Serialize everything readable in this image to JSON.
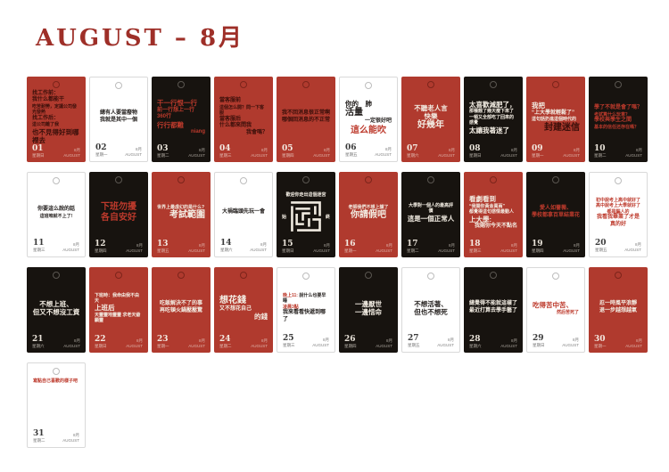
{
  "title": "AUGUST – 8月",
  "footer_right": [
    "8月",
    "AUGUST"
  ],
  "colors": {
    "accent_red": "#b03a2e",
    "card_black": "#17130f",
    "title_red": "#9e2f28",
    "dark_text_on_red": "#390f0a",
    "warm_white_text": "#f3ede3"
  },
  "cards": [
    {
      "num": "01",
      "weekday": "星期日",
      "bg": "red",
      "align": "l",
      "lines": [
        {
          "t": "找工作前：",
          "s": "m",
          "c": "dark"
        },
        {
          "t": "我什么都能干",
          "s": "m",
          "c": "dark"
        },
        {
          "t": "吃苦耐勞，定讓公司發光發熱",
          "s": "s",
          "c": "dark"
        },
        {
          "t": "找工作后：",
          "s": "m",
          "c": "dark"
        },
        {
          "t": "這公司離了我",
          "s": "s",
          "c": "dark"
        },
        {
          "t": "也不見得好到哪裡去",
          "s": "l",
          "c": "dark"
        }
      ]
    },
    {
      "num": "02",
      "weekday": "星期一",
      "bg": "white",
      "align": "c",
      "lines": [
        {
          "t": "總有人要當廢物",
          "s": "m",
          "c": "black"
        },
        {
          "t": "我就是其中一個",
          "s": "m",
          "c": "black"
        }
      ]
    },
    {
      "num": "03",
      "weekday": "星期二",
      "bg": "black",
      "align": "l",
      "lines": [
        {
          "t": "干一行恨一行",
          "s": "l",
          "c": "red"
        },
        {
          "t": "前一行想上一行",
          "s": "m",
          "c": "red"
        },
        {
          "t": "360行",
          "s": "m",
          "c": "red"
        },
        {
          "t": "行行都難",
          "s": "l",
          "c": "red"
        },
        {
          "t": "niang",
          "s": "m",
          "c": "red",
          "a": "r"
        }
      ]
    },
    {
      "num": "04",
      "weekday": "星期三",
      "bg": "red",
      "align": "l",
      "lines": [
        {
          "t": "當客服前",
          "s": "m",
          "c": "dark"
        },
        {
          "t": "這個怎么開？問一下客服",
          "s": "s",
          "c": "dark"
        },
        {
          "t": "當客服后",
          "s": "m",
          "c": "dark"
        },
        {
          "t": "什么都來問我",
          "s": "m",
          "c": "dark"
        },
        {
          "t": "我會嗎？",
          "s": "m",
          "c": "dark",
          "a": "r"
        }
      ]
    },
    {
      "num": "05",
      "weekday": "星期四",
      "bg": "red",
      "align": "l",
      "lines": [
        {
          "t": "我不回消息很正常啊",
          "s": "m",
          "c": "dark"
        },
        {
          "t": "哪個回消息的不正常",
          "s": "m",
          "c": "dark"
        }
      ]
    },
    {
      "num": "06",
      "weekday": "星期五",
      "bg": "white",
      "align": "l",
      "lines": [
        {
          "t": "你的　肺",
          "s": "l",
          "c": "black"
        },
        {
          "t": "活量",
          "s": "xl",
          "c": "black"
        },
        {
          "t": "一定很好吧",
          "s": "m",
          "c": "black",
          "a": "r"
        },
        {
          "t": "這么能吹",
          "s": "xl",
          "c": "red",
          "a": "c"
        }
      ]
    },
    {
      "num": "07",
      "weekday": "星期六",
      "bg": "red",
      "align": "c",
      "lines": [
        {
          "t": "不聽老人言",
          "s": "l",
          "c": "white"
        },
        {
          "t": "快樂",
          "s": "l",
          "c": "white"
        },
        {
          "t": "好幾年",
          "s": "xl",
          "c": "white"
        }
      ]
    },
    {
      "num": "08",
      "weekday": "星期日",
      "bg": "black",
      "align": "l",
      "lines": [
        {
          "t": "太喜歡減肥了，",
          "s": "l",
          "c": "white"
        },
        {
          "t": "那種餓了幾天瘦下來了",
          "s": "s",
          "c": "white"
        },
        {
          "t": "一頓又全部吃了回來的感覺",
          "s": "s",
          "c": "white"
        },
        {
          "t": "太讓我著迷了",
          "s": "l",
          "c": "white"
        }
      ]
    },
    {
      "num": "09",
      "weekday": "星期一",
      "bg": "red",
      "align": "l",
      "lines": [
        {
          "t": "我把",
          "s": "l",
          "c": "white"
        },
        {
          "t": "“上大學就輕鬆了”",
          "s": "m",
          "c": "white"
        },
        {
          "t": "這句話扔進這個時代的",
          "s": "s",
          "c": "white"
        },
        {
          "t": "封建迷信",
          "s": "xl",
          "c": "dark",
          "a": "r"
        }
      ]
    },
    {
      "num": "10",
      "weekday": "星期二",
      "bg": "black",
      "align": "l",
      "lines": [
        {
          "t": "學了不就是會了嗎？",
          "s": "m",
          "c": "red"
        },
        {
          "t": "考試算什么玩意？",
          "s": "s",
          "c": "red"
        },
        {
          "t": "學校與學生之間",
          "s": "m",
          "c": "red"
        },
        {
          "t": "基本的信任还存在嗎？",
          "s": "s",
          "c": "red"
        }
      ]
    },
    {
      "num": "11",
      "weekday": "星期三",
      "bg": "white",
      "align": "c",
      "lines": [
        {
          "t": "你要這么說的話",
          "s": "m",
          "c": "black"
        },
        {
          "t": "這班咱就不上了!",
          "s": "s",
          "c": "black"
        }
      ]
    },
    {
      "num": "12",
      "weekday": "星期四",
      "bg": "black",
      "align": "c",
      "lines": [
        {
          "t": "下班勿擾",
          "s": "xl",
          "c": "red"
        },
        {
          "t": "各自安好",
          "s": "xl",
          "c": "red"
        }
      ]
    },
    {
      "num": "13",
      "weekday": "星期五",
      "bg": "red",
      "align": "l",
      "lines": [
        {
          "t": "世界上最虛幻的是什么?",
          "s": "s",
          "c": "white"
        },
        {
          "t": "考試範圍",
          "s": "xl",
          "c": "white",
          "a": "r"
        }
      ]
    },
    {
      "num": "14",
      "weekday": "星期六",
      "bg": "white",
      "align": "c",
      "lines": [
        {
          "t": "大禍臨頭先玩一會",
          "s": "m",
          "c": "black"
        }
      ]
    },
    {
      "num": "15",
      "weekday": "星期日",
      "bg": "black",
      "align": "c",
      "maze": true,
      "lines": [
        {
          "t": "歡迎你走出這個迷宮",
          "s": "s",
          "c": "white"
        }
      ]
    },
    {
      "num": "16",
      "weekday": "星期一",
      "bg": "red",
      "align": "c",
      "lines": [
        {
          "t": "老師我們不想上課了",
          "s": "s",
          "c": "white"
        },
        {
          "t": "你請假吧",
          "s": "xl",
          "c": "white"
        }
      ]
    },
    {
      "num": "17",
      "weekday": "星期二",
      "bg": "black",
      "align": "c",
      "lines": [
        {
          "t": "大學對一個人的最高評價",
          "s": "s",
          "c": "white"
        },
        {
          "t": "這是一個正常人",
          "s": "l",
          "c": "white"
        }
      ]
    },
    {
      "num": "18",
      "weekday": "星期三",
      "bg": "red",
      "align": "l",
      "lines": [
        {
          "t": "看劇看到",
          "s": "l",
          "c": "white"
        },
        {
          "t": "“我賜你黃金萬兩”",
          "s": "s",
          "c": "white"
        },
        {
          "t": "都覺得這句感情最動人",
          "s": "s",
          "c": "white"
        },
        {
          "t": "上大學:",
          "s": "l",
          "c": "white"
        },
        {
          "t": "我賜你今天不點名",
          "s": "m",
          "c": "white",
          "a": "r"
        }
      ]
    },
    {
      "num": "19",
      "weekday": "星期四",
      "bg": "black",
      "align": "c",
      "lines": [
        {
          "t": "愛人如薔薇、",
          "s": "m",
          "c": "red"
        },
        {
          "t": "學校都拿百草結業花",
          "s": "m",
          "c": "red"
        }
      ]
    },
    {
      "num": "20",
      "weekday": "星期五",
      "bg": "white",
      "align": "c",
      "lines": [
        {
          "t": "初中說考上高中就好了",
          "s": "s",
          "c": "red"
        },
        {
          "t": "高中說考上大學就好了",
          "s": "s",
          "c": "red"
        },
        {
          "t": "都是騙人的",
          "s": "s",
          "c": "red"
        },
        {
          "t": "我看我畢業了才是真的好",
          "s": "m",
          "c": "red"
        }
      ]
    },
    {
      "num": "21",
      "weekday": "星期六",
      "bg": "black",
      "align": "c",
      "lines": [
        {
          "t": "不想上班、",
          "s": "l",
          "c": "white"
        },
        {
          "t": "但又不想沒工資",
          "s": "l",
          "c": "white"
        }
      ]
    },
    {
      "num": "22",
      "weekday": "星期日",
      "bg": "red",
      "align": "l",
      "lines": [
        {
          "t": "下班時：我命由我不由天",
          "s": "s",
          "c": "white"
        },
        {
          "t": "上班后",
          "s": "l",
          "c": "white"
        },
        {
          "t": "天靈靈地靈靈 求老天爺顯靈",
          "s": "s",
          "c": "white"
        }
      ]
    },
    {
      "num": "23",
      "weekday": "星期一",
      "bg": "red",
      "align": "c",
      "lines": [
        {
          "t": "吃飯解決不了的事",
          "s": "m",
          "c": "white"
        },
        {
          "t": "再吃頓火鍋壓壓驚",
          "s": "m",
          "c": "white"
        }
      ]
    },
    {
      "num": "24",
      "weekday": "星期二",
      "bg": "red",
      "align": "l",
      "lines": [
        {
          "t": "想花錢",
          "s": "xl",
          "c": "white"
        },
        {
          "t": "又不想花自己",
          "s": "m",
          "c": "white"
        },
        {
          "t": "的錢",
          "s": "l",
          "c": "white",
          "a": "r"
        }
      ]
    },
    {
      "num": "25",
      "weekday": "星期三",
      "bg": "white",
      "align": "l",
      "lines": [
        {
          "pre": "晚上11: ",
          "preC": "red",
          "t": "說什么也要早睡",
          "s": "s",
          "c": "black"
        },
        {
          "t": "凌晨3點",
          "s": "s",
          "c": "red"
        },
        {
          "t": "我來看看快遞到哪了",
          "s": "m",
          "c": "black"
        }
      ]
    },
    {
      "num": "26",
      "weekday": "星期四",
      "bg": "black",
      "align": "c",
      "lines": [
        {
          "t": "一邊厭世",
          "s": "l",
          "c": "white"
        },
        {
          "t": "一邊惜命",
          "s": "l",
          "c": "white"
        }
      ]
    },
    {
      "num": "27",
      "weekday": "星期五",
      "bg": "white",
      "align": "c",
      "lines": [
        {
          "t": "不想活著、",
          "s": "l",
          "c": "black"
        },
        {
          "t": "但也不想死",
          "s": "l",
          "c": "black"
        }
      ]
    },
    {
      "num": "28",
      "weekday": "星期六",
      "bg": "black",
      "align": "c",
      "lines": [
        {
          "t": "總覺得不能就這樣了",
          "s": "m",
          "c": "white"
        },
        {
          "t": "最近打算去學手藝了",
          "s": "m",
          "c": "white"
        }
      ]
    },
    {
      "num": "29",
      "weekday": "星期日",
      "bg": "white",
      "align": "l",
      "lines": [
        {
          "t": "吃得苦中苦、",
          "s": "l",
          "c": "red"
        },
        {
          "t": "然后苦死了",
          "s": "s",
          "c": "red",
          "a": "r"
        }
      ]
    },
    {
      "num": "30",
      "weekday": "星期一",
      "bg": "red",
      "align": "c",
      "lines": [
        {
          "t": "忍一時風平浪靜",
          "s": "m",
          "c": "white"
        },
        {
          "t": "退一步越想越氣",
          "s": "m",
          "c": "white"
        }
      ]
    },
    {
      "num": "31",
      "weekday": "星期二",
      "bg": "white",
      "align": "l",
      "vtop": true,
      "lines": [
        {
          "t": "寫點自己喜歡的樣子吧",
          "s": "s",
          "c": "red"
        }
      ]
    }
  ]
}
